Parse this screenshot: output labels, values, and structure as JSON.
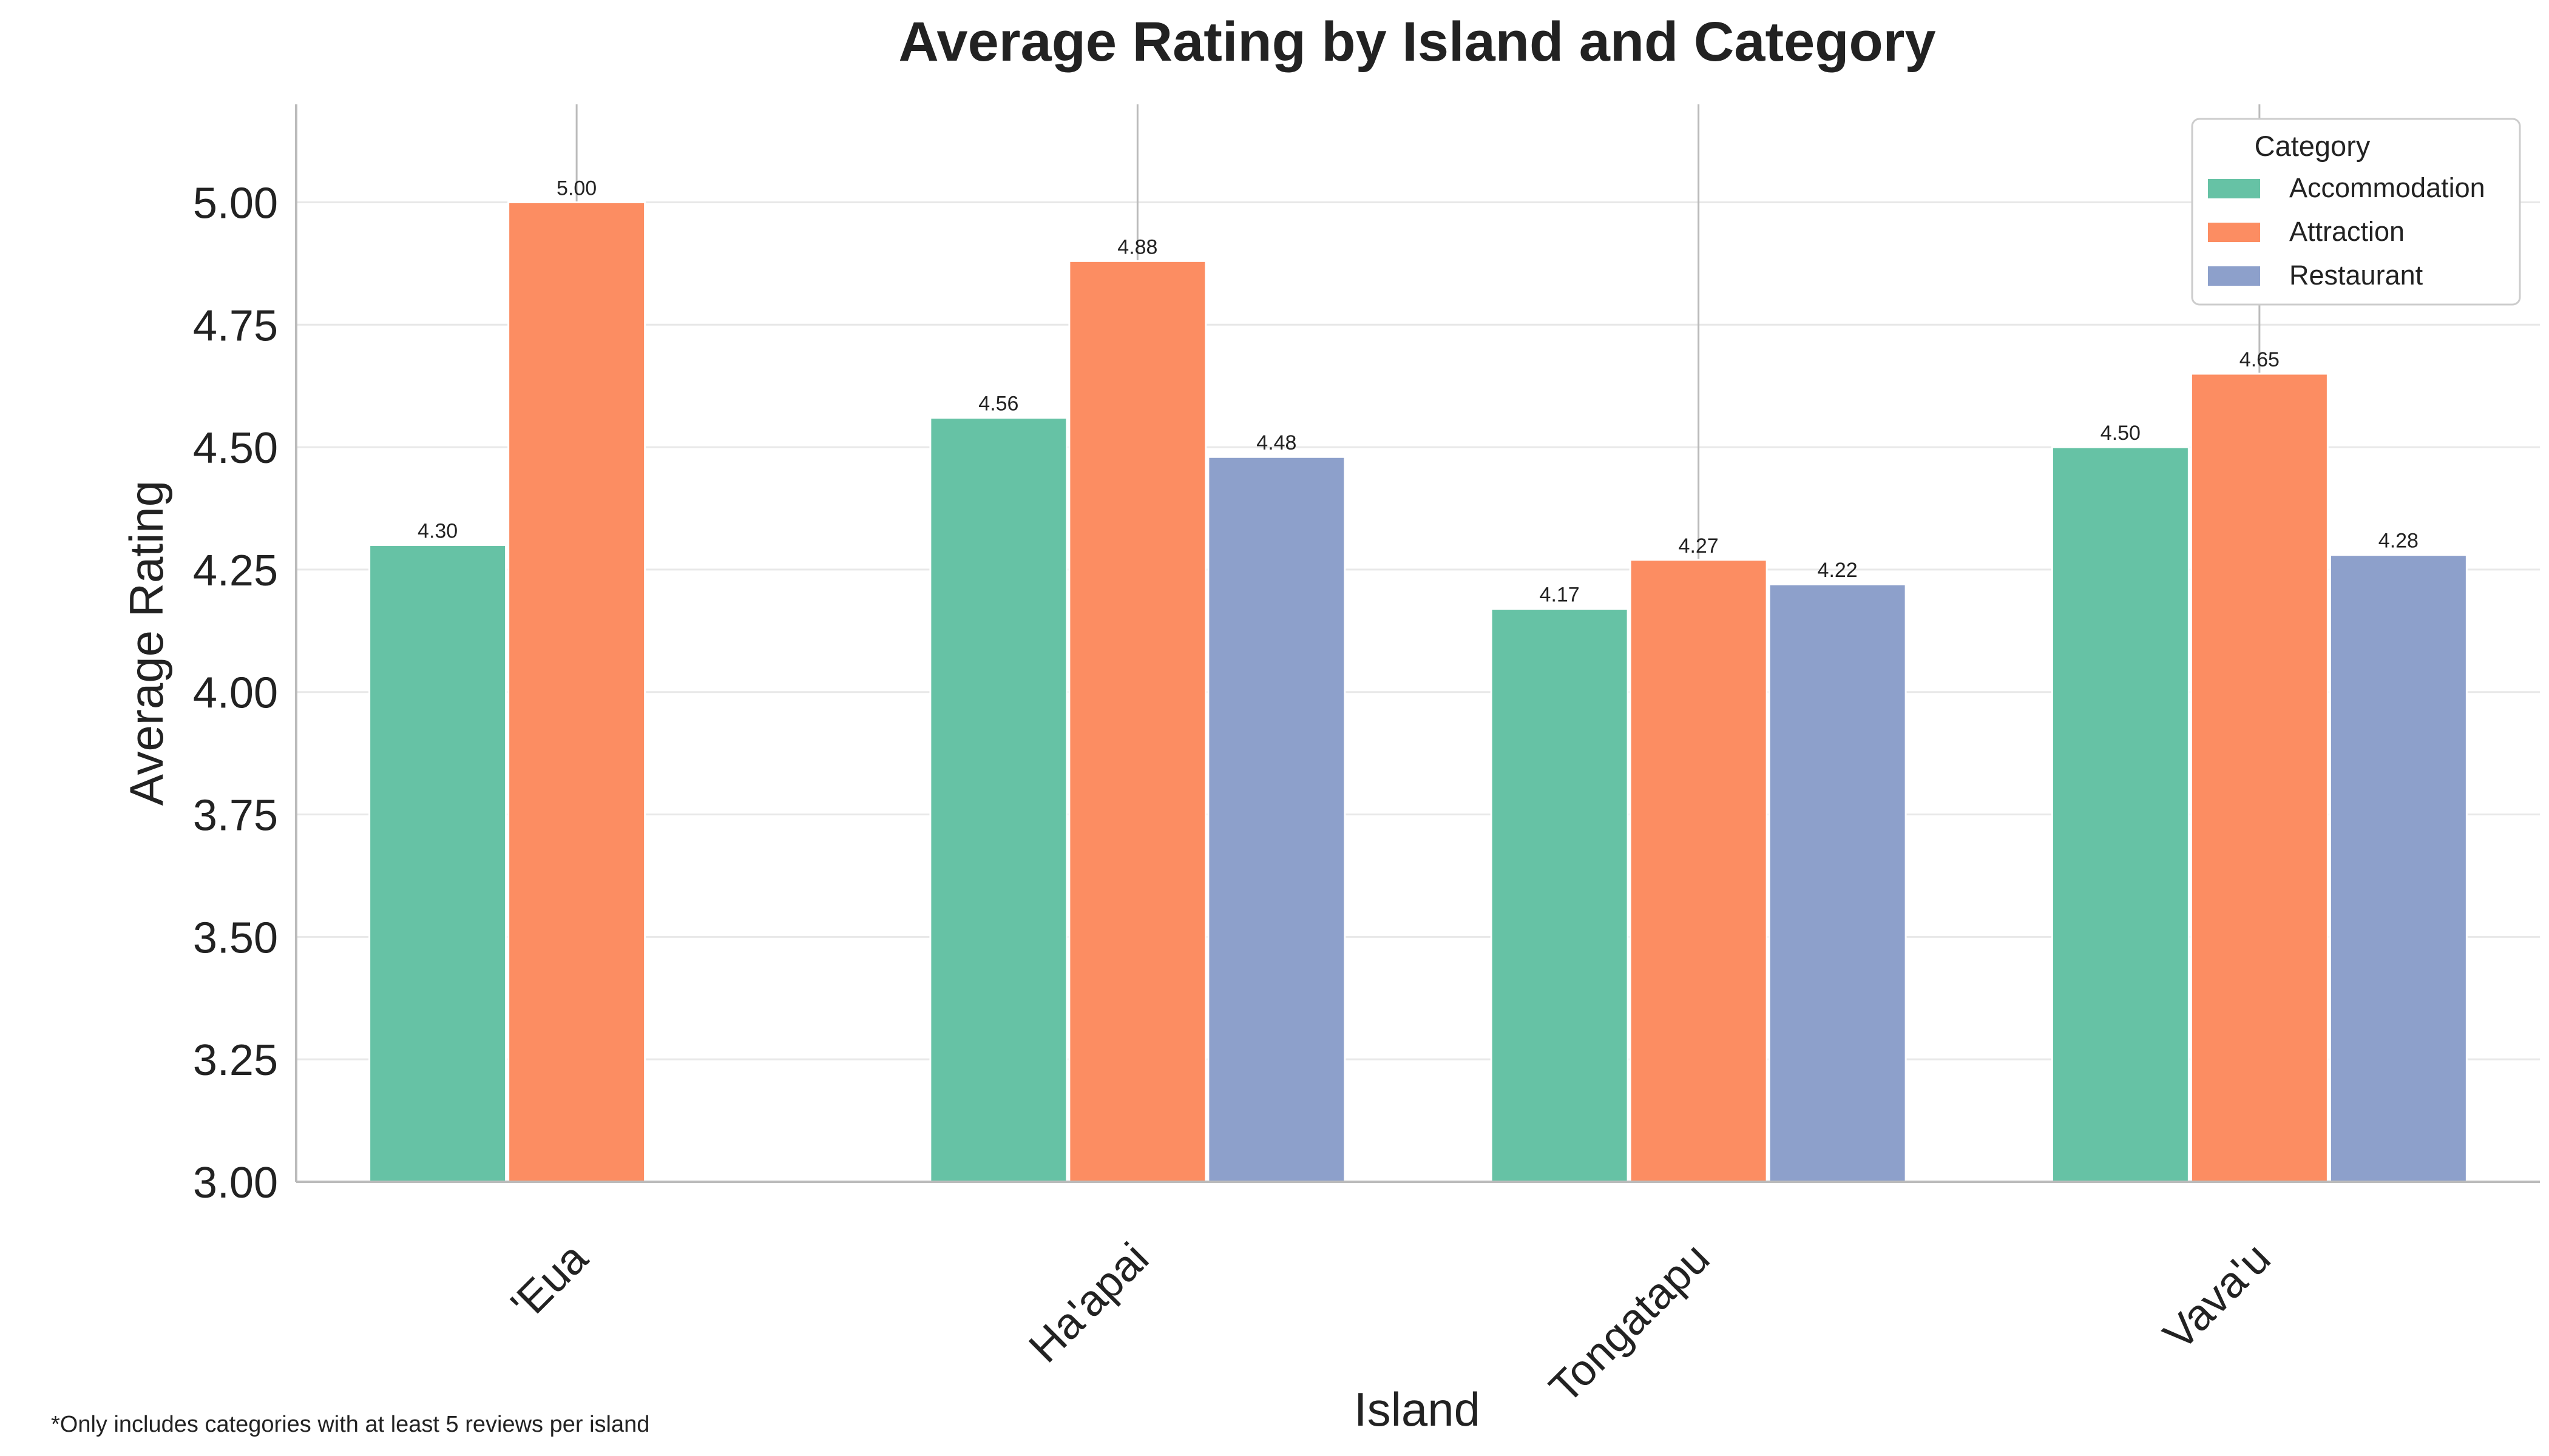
{
  "chart_data": {
    "type": "bar",
    "title": "Average Rating by Island and Category",
    "xlabel": "Island",
    "ylabel": "Average Rating",
    "categories": [
      "'Eua",
      "Ha'apai",
      "Tongatapu",
      "Vava'u"
    ],
    "series": [
      {
        "name": "Accommodation",
        "color": "#66c2a5",
        "values": [
          4.3,
          4.56,
          4.17,
          4.5
        ],
        "labels": [
          "4.30",
          "4.56",
          "4.17",
          "4.50"
        ]
      },
      {
        "name": "Attraction",
        "color": "#fc8d62",
        "values": [
          5.0,
          4.88,
          4.27,
          4.65
        ],
        "labels": [
          "5.00",
          "4.88",
          "4.27",
          "4.65"
        ]
      },
      {
        "name": "Restaurant",
        "color": "#8da0cb",
        "values": [
          null,
          4.48,
          4.22,
          4.28
        ],
        "labels": [
          null,
          "4.48",
          "4.22",
          "4.28"
        ]
      }
    ],
    "ylim": [
      3.0,
      5.2
    ],
    "yticks": [
      "3.00",
      "3.25",
      "3.50",
      "3.75",
      "4.00",
      "4.25",
      "4.50",
      "4.75",
      "5.00"
    ],
    "grid": "horizontal",
    "legend": {
      "title": "Category",
      "placement": "top-right"
    },
    "footnote": "*Only includes categories with at least 5 reviews per island"
  }
}
